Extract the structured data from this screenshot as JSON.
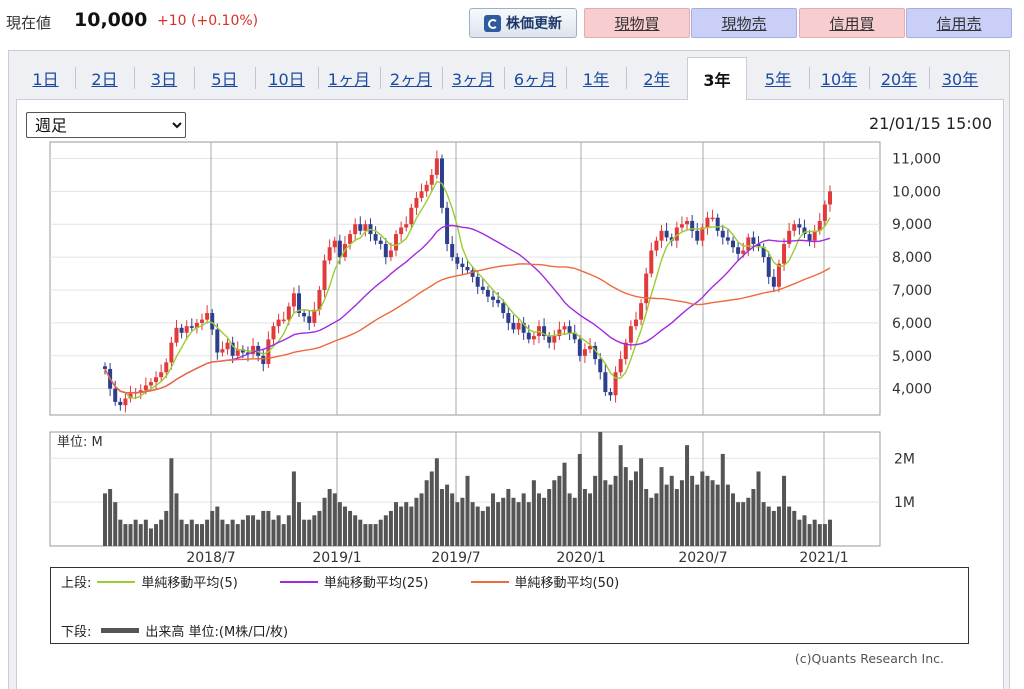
{
  "header": {
    "price_label": "現在値",
    "price_value": "10,000",
    "price_change": "+10 (+0.10%)",
    "change_color": "#d9302c",
    "refresh_label": "株価更新",
    "refresh_icon": "refresh-icon",
    "trade_buttons": [
      {
        "label": "現物買",
        "kind": "buy"
      },
      {
        "label": "現物売",
        "kind": "sell"
      },
      {
        "label": "信用買",
        "kind": "buy"
      },
      {
        "label": "信用売",
        "kind": "sell"
      }
    ]
  },
  "tabs": [
    "1日",
    "2日",
    "3日",
    "5日",
    "10日",
    "1ヶ月",
    "2ヶ月",
    "3ヶ月",
    "6ヶ月",
    "1年",
    "2年",
    "3年",
    "5年",
    "10年",
    "20年",
    "30年"
  ],
  "active_tab": "3年",
  "period_select": {
    "value": "週足",
    "options": [
      "週足"
    ]
  },
  "timestamp": "21/01/15 15:00",
  "legend": {
    "upper_label": "上段:",
    "lower_label": "下段:",
    "ma5": "単純移動平均(5)",
    "ma25": "単純移動平均(25)",
    "ma50": "単純移動平均(50)",
    "volume": "出来高 単位:(M株/口/枚)"
  },
  "copyright": "(c)Quants Research Inc.",
  "chart_data": {
    "type": "candlestick",
    "price_axis": {
      "ticks": [
        "4,000",
        "5,000",
        "6,000",
        "7,000",
        "8,000",
        "9,000",
        "10,000",
        "11,000"
      ],
      "values": [
        4000,
        5000,
        6000,
        7000,
        8000,
        9000,
        10000,
        11000
      ],
      "range": [
        3200,
        11500
      ]
    },
    "volume_axis": {
      "unit_label": "単位: M",
      "ticks": [
        "1M",
        "2M"
      ],
      "values": [
        1,
        2
      ],
      "range": [
        0,
        2.6
      ]
    },
    "x_labels": [
      "2018/7",
      "2019/1",
      "2019/7",
      "2020/1",
      "2020/7",
      "2021/1"
    ],
    "x_label_weeks": [
      24,
      50,
      76,
      102,
      128,
      154
    ],
    "colors": {
      "up": "#e03a3a",
      "down": "#2c3e8c",
      "ma5": "#9acd32",
      "ma25": "#a12ae0",
      "ma50": "#ee6a3c",
      "volume": "#555555",
      "grid": "#aaaaaa"
    },
    "weekly_close": [
      4600,
      4000,
      3600,
      3500,
      3700,
      3850,
      3900,
      3950,
      4100,
      4200,
      4350,
      4500,
      4800,
      5400,
      5850,
      5700,
      5900,
      5850,
      6000,
      6100,
      6300,
      5800,
      5100,
      5200,
      5400,
      5000,
      5200,
      5100,
      5050,
      5300,
      5000,
      4750,
      5500,
      5900,
      6100,
      6100,
      6500,
      6900,
      6300,
      6200,
      6000,
      6400,
      7000,
      7900,
      8300,
      8500,
      8000,
      8400,
      8700,
      9000,
      8800,
      9000,
      8700,
      8500,
      8400,
      8000,
      8200,
      8700,
      8900,
      9000,
      9500,
      9800,
      10000,
      10200,
      10500,
      11000,
      9500,
      8400,
      8000,
      7800,
      7700,
      7600,
      7400,
      7100,
      7000,
      6800,
      6700,
      6600,
      6300,
      6000,
      5800,
      6000,
      5700,
      5500,
      5600,
      5900,
      5600,
      5400,
      5600,
      5800,
      5900,
      5700,
      5500,
      5000,
      5200,
      5300,
      4900,
      4500,
      3900,
      3800,
      4500,
      4900,
      5400,
      5900,
      6100,
      6600,
      7500,
      8200,
      8500,
      8800,
      8600,
      8500,
      8900,
      9000,
      9100,
      8800,
      8500,
      8900,
      9200,
      9200,
      8800,
      8600,
      8500,
      8300,
      8100,
      8200,
      8600,
      8400,
      8300,
      8000,
      7400,
      7100,
      7800,
      8400,
      8800,
      9000,
      8900,
      8700,
      8500,
      8800,
      9100,
      9600,
      10000
    ],
    "weekly_volume": [
      1.2,
      1.3,
      1.0,
      0.6,
      0.5,
      0.5,
      0.6,
      0.5,
      0.6,
      0.4,
      0.5,
      0.6,
      0.8,
      2.0,
      1.2,
      0.6,
      0.5,
      0.6,
      0.5,
      0.5,
      0.6,
      0.8,
      0.9,
      0.6,
      0.5,
      0.6,
      0.5,
      0.6,
      0.7,
      0.7,
      0.6,
      0.8,
      0.8,
      0.6,
      0.7,
      0.5,
      0.7,
      1.7,
      1.0,
      0.6,
      0.6,
      0.7,
      0.8,
      1.1,
      1.3,
      1.2,
      1.0,
      0.9,
      0.8,
      0.7,
      0.6,
      0.5,
      0.5,
      0.5,
      0.6,
      0.7,
      0.8,
      1.0,
      0.9,
      1.0,
      0.9,
      1.1,
      1.2,
      1.5,
      1.7,
      2.0,
      1.3,
      1.4,
      1.2,
      1.0,
      1.1,
      1.6,
      1.0,
      0.9,
      0.8,
      0.9,
      1.2,
      1.0,
      1.1,
      1.3,
      1.1,
      1.0,
      1.2,
      1.0,
      1.5,
      1.2,
      1.1,
      1.3,
      1.5,
      1.6,
      1.9,
      1.2,
      1.1,
      2.1,
      1.3,
      1.2,
      1.6,
      2.6,
      1.5,
      1.4,
      1.6,
      2.3,
      1.8,
      1.5,
      1.7,
      2.0,
      1.3,
      1.1,
      1.2,
      1.8,
      1.4,
      1.6,
      1.3,
      1.5,
      2.3,
      1.6,
      1.4,
      1.7,
      1.6,
      1.5,
      1.4,
      2.1,
      1.4,
      1.2,
      1.0,
      1.0,
      1.1,
      1.3,
      1.7,
      1.0,
      0.9,
      0.8,
      0.9,
      1.6,
      0.9,
      0.8,
      0.6,
      0.7,
      0.5,
      0.6,
      0.5,
      0.5,
      0.6
    ]
  }
}
